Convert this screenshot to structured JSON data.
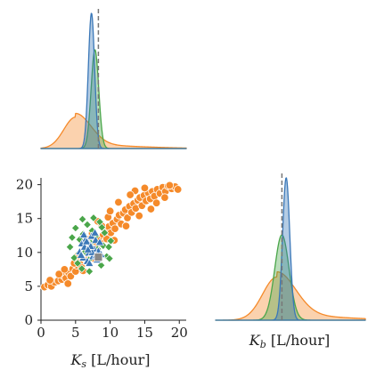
{
  "colors": {
    "orange": "#f58a2a",
    "green": "#4aa64a",
    "blue": "#3b78b8",
    "reference_line": "#777777",
    "true_value_marker": "#888888"
  },
  "chart_data": [
    {
      "id": "joint",
      "type": "scatter",
      "xlabel": "K_s [L/hour]",
      "xlabel_main": "K",
      "xlabel_sub": "s",
      "xlabel_unit": " [L/hour]",
      "ylabel": "",
      "xlim": [
        0,
        21
      ],
      "ylim": [
        0,
        21
      ],
      "xticks": [
        0,
        5,
        10,
        15,
        20
      ],
      "yticks": [
        0,
        5,
        10,
        15,
        20
      ],
      "true_value": [
        8.3,
        9.3
      ],
      "series": [
        {
          "color_key": "orange",
          "marker": "circle",
          "points": [
            [
              0.5,
              4.9
            ],
            [
              1.0,
              5.2
            ],
            [
              1.5,
              5.0
            ],
            [
              2.0,
              5.6
            ],
            [
              2.5,
              5.8
            ],
            [
              3.0,
              6.0
            ],
            [
              3.2,
              6.6
            ],
            [
              3.6,
              6.2
            ],
            [
              4.0,
              7.0
            ],
            [
              4.3,
              6.5
            ],
            [
              4.6,
              7.6
            ],
            [
              5.0,
              7.2
            ],
            [
              5.2,
              8.1
            ],
            [
              5.6,
              8.6
            ],
            [
              5.9,
              7.8
            ],
            [
              6.2,
              9.2
            ],
            [
              6.5,
              9.8
            ],
            [
              6.8,
              8.9
            ],
            [
              7.0,
              10.3
            ],
            [
              7.3,
              9.6
            ],
            [
              7.6,
              10.9
            ],
            [
              7.9,
              11.5
            ],
            [
              8.1,
              10.6
            ],
            [
              8.4,
              12.1
            ],
            [
              8.7,
              11.3
            ],
            [
              9.0,
              12.6
            ],
            [
              9.2,
              13.3
            ],
            [
              9.5,
              12.0
            ],
            [
              9.8,
              13.8
            ],
            [
              10.1,
              12.9
            ],
            [
              10.4,
              14.3
            ],
            [
              10.7,
              13.5
            ],
            [
              11.0,
              14.9
            ],
            [
              11.3,
              15.5
            ],
            [
              11.6,
              14.2
            ],
            [
              11.9,
              15.8
            ],
            [
              12.2,
              16.3
            ],
            [
              12.5,
              15.1
            ],
            [
              12.8,
              16.8
            ],
            [
              13.1,
              15.9
            ],
            [
              13.4,
              17.2
            ],
            [
              13.7,
              16.5
            ],
            [
              14.0,
              17.7
            ],
            [
              14.3,
              18.1
            ],
            [
              14.6,
              16.9
            ],
            [
              14.9,
              18.4
            ],
            [
              15.2,
              17.6
            ],
            [
              15.5,
              18.8
            ],
            [
              15.8,
              17.9
            ],
            [
              16.1,
              19.0
            ],
            [
              16.4,
              18.3
            ],
            [
              16.8,
              19.3
            ],
            [
              17.2,
              18.7
            ],
            [
              17.6,
              19.6
            ],
            [
              18.0,
              19.0
            ],
            [
              18.4,
              19.8
            ],
            [
              18.9,
              19.4
            ],
            [
              19.4,
              19.7
            ],
            [
              19.8,
              19.3
            ],
            [
              3.9,
              5.4
            ],
            [
              4.8,
              8.4
            ],
            [
              6.1,
              7.3
            ],
            [
              7.7,
              9.1
            ],
            [
              8.8,
              13.9
            ],
            [
              10.6,
              11.8
            ],
            [
              12.3,
              13.9
            ],
            [
              9.7,
              15.2
            ],
            [
              14.2,
              15.4
            ],
            [
              11.2,
              17.4
            ],
            [
              15.9,
              16.4
            ],
            [
              13.6,
              19.1
            ],
            [
              6.9,
              11.9
            ],
            [
              5.3,
              9.5
            ],
            [
              8.2,
              14.6
            ],
            [
              16.7,
              17.3
            ],
            [
              2.6,
              6.8
            ],
            [
              1.3,
              5.9
            ],
            [
              12.9,
              18.5
            ],
            [
              17.9,
              18.1
            ],
            [
              10.0,
              16.1
            ],
            [
              15.0,
              19.5
            ],
            [
              7.4,
              12.8
            ],
            [
              3.4,
              7.5
            ],
            [
              18.6,
              19.9
            ]
          ]
        },
        {
          "color_key": "green",
          "marker": "diamond",
          "points": [
            [
              4.2,
              10.8
            ],
            [
              4.8,
              9.2
            ],
            [
              5.0,
              13.6
            ],
            [
              5.3,
              8.4
            ],
            [
              5.6,
              11.9
            ],
            [
              5.9,
              7.6
            ],
            [
              6.1,
              12.7
            ],
            [
              6.4,
              10.1
            ],
            [
              6.7,
              14.1
            ],
            [
              6.9,
              8.9
            ],
            [
              7.2,
              11.4
            ],
            [
              7.4,
              13.2
            ],
            [
              7.7,
              9.7
            ],
            [
              7.9,
              12.4
            ],
            [
              8.2,
              10.5
            ],
            [
              8.5,
              14.5
            ],
            [
              8.7,
              8.1
            ],
            [
              9.0,
              11.0
            ],
            [
              9.2,
              12.9
            ],
            [
              9.5,
              9.4
            ],
            [
              9.8,
              10.8
            ],
            [
              10.1,
              11.7
            ],
            [
              4.5,
              12.2
            ],
            [
              6.0,
              14.9
            ],
            [
              7.0,
              7.2
            ],
            [
              8.8,
              13.7
            ],
            [
              5.5,
              9.9
            ],
            [
              9.9,
              9.1
            ],
            [
              7.6,
              15.1
            ]
          ]
        },
        {
          "color_key": "blue",
          "marker": "triangle",
          "points": [
            [
              5.6,
              10.1
            ],
            [
              5.9,
              11.3
            ],
            [
              6.1,
              9.2
            ],
            [
              6.3,
              10.8
            ],
            [
              6.5,
              12.0
            ],
            [
              6.7,
              8.7
            ],
            [
              6.9,
              9.9
            ],
            [
              7.1,
              11.1
            ],
            [
              7.3,
              12.4
            ],
            [
              7.5,
              9.4
            ],
            [
              7.7,
              10.5
            ],
            [
              7.9,
              11.8
            ],
            [
              8.1,
              8.9
            ],
            [
              8.3,
              10.2
            ],
            [
              8.5,
              11.5
            ],
            [
              6.2,
              12.6
            ],
            [
              7.0,
              8.4
            ],
            [
              7.8,
              12.9
            ],
            [
              8.7,
              9.7
            ],
            [
              5.8,
              9.6
            ],
            [
              6.6,
              11.6
            ],
            [
              7.4,
              10.0
            ],
            [
              8.0,
              9.6
            ],
            [
              7.2,
              10.9
            ],
            [
              6.8,
              10.4
            ]
          ]
        }
      ]
    },
    {
      "id": "marginal_ks",
      "type": "area",
      "x_domain": [
        0,
        21
      ],
      "reference_line_x": 8.3,
      "series": [
        {
          "color_key": "orange",
          "kind": "skew",
          "mean": 5.0,
          "sd_left": 1.7,
          "sd_right": 2.2,
          "tail_weight": 0.12,
          "tail_sd": 8.0,
          "peak": 0.26
        },
        {
          "color_key": "green",
          "kind": "normal",
          "mean": 7.8,
          "sd": 0.55,
          "peak": 0.73
        },
        {
          "color_key": "blue",
          "kind": "normal",
          "mean": 7.3,
          "sd": 0.45,
          "peak": 1.0
        }
      ]
    },
    {
      "id": "marginal_kb",
      "type": "area",
      "xlabel": "K_b [L/hour]",
      "xlabel_main": "K",
      "xlabel_sub": "b",
      "xlabel_unit": " [L/hour]",
      "x_domain": [
        0,
        21
      ],
      "reference_line_x": 9.3,
      "series": [
        {
          "color_key": "orange",
          "kind": "skew",
          "mean": 8.6,
          "sd_left": 2.0,
          "sd_right": 2.6,
          "tail_weight": 0.12,
          "tail_sd": 8.0,
          "peak": 0.34
        },
        {
          "color_key": "green",
          "kind": "normal",
          "mean": 9.3,
          "sd": 1.0,
          "peak": 0.6
        },
        {
          "color_key": "blue",
          "kind": "normal",
          "mean": 9.9,
          "sd": 0.5,
          "peak": 1.0
        }
      ]
    }
  ]
}
